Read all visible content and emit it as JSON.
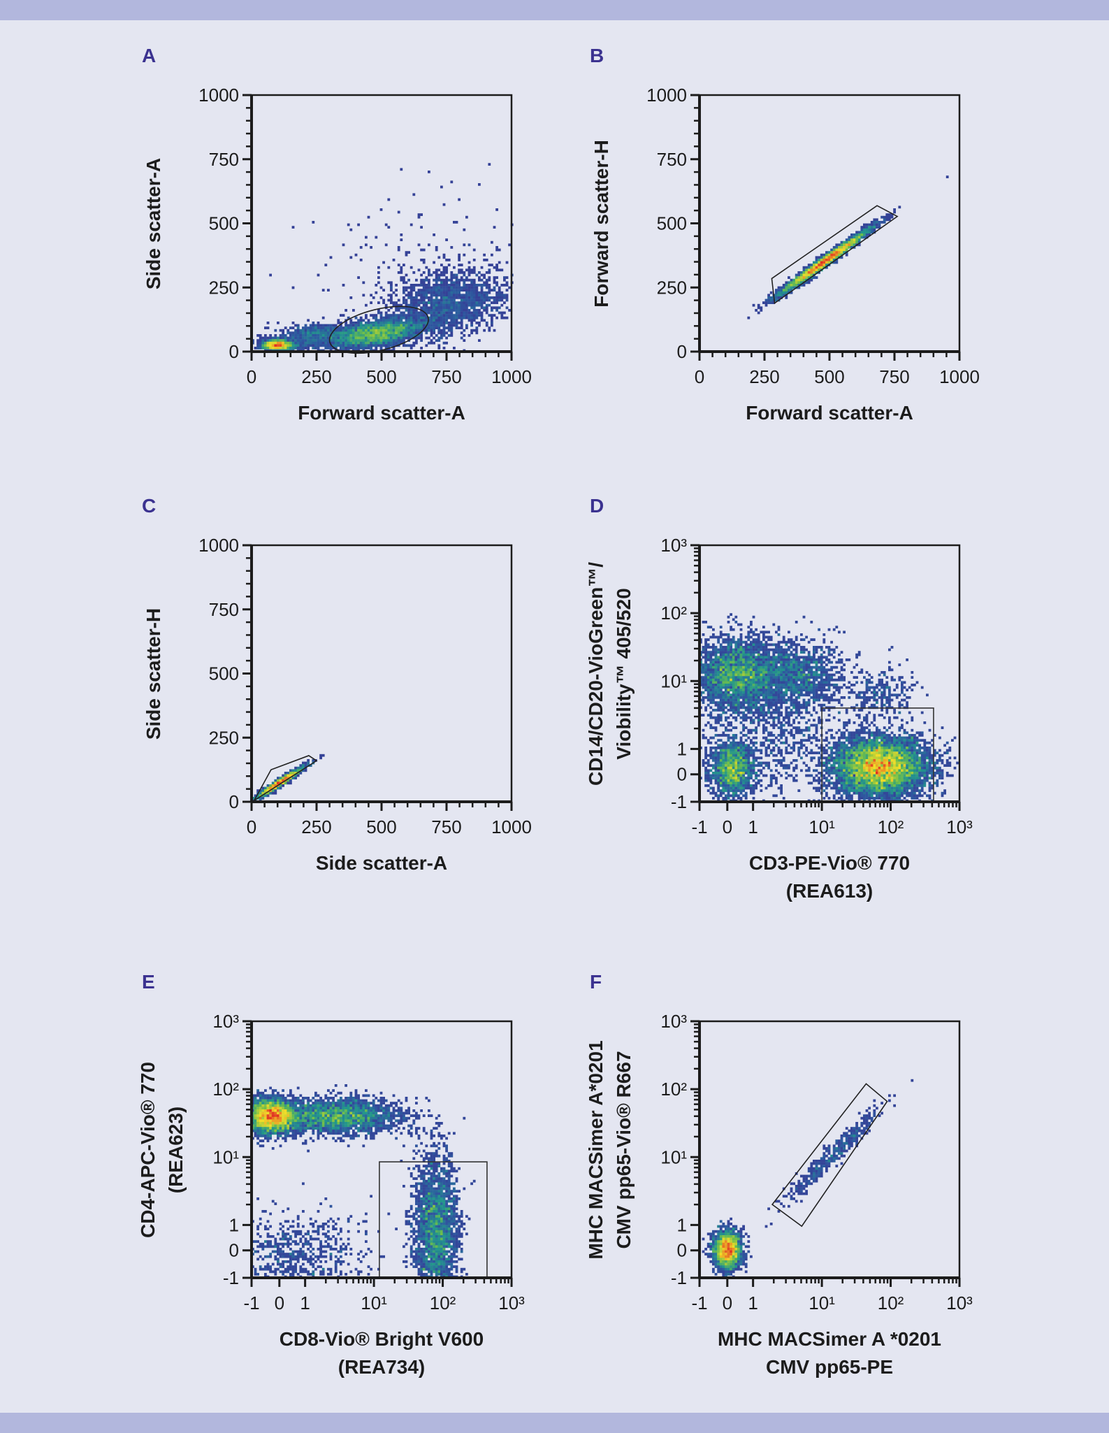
{
  "colors": {
    "background": "#e4e6f1",
    "band": "#b2b7dd",
    "panel_letter": "#3b3290",
    "density_low": "#3b2f8f",
    "density_high": "#e03020"
  },
  "chart_data": [
    {
      "panel": "A",
      "type": "scatter",
      "subtype": "density-dot-plot",
      "xlabel": "Forward scatter-A",
      "ylabel": "Side scatter-A",
      "xscale": "linear",
      "yscale": "linear",
      "xlim": [
        0,
        1000
      ],
      "ylim": [
        0,
        1000
      ],
      "xticks": [
        0,
        250,
        500,
        750,
        1000
      ],
      "xtick_labels": [
        "0",
        "250",
        "500",
        "750",
        "1000"
      ],
      "yticks": [
        0,
        250,
        500,
        750,
        1000
      ],
      "ytick_labels": [
        "0",
        "250",
        "500",
        "750",
        "1000"
      ],
      "gate": {
        "shape": "ellipse",
        "center": [
          490,
          85
        ],
        "radii": [
          195,
          80
        ],
        "angle_deg": 14
      },
      "populations": [
        {
          "x": 480,
          "y": 70,
          "sx": 85,
          "sy": 28,
          "rho": 0.4,
          "n": 3200
        },
        {
          "x": 100,
          "y": 25,
          "sx": 30,
          "sy": 10,
          "rho": 0,
          "n": 1500
        },
        {
          "x": 250,
          "y": 60,
          "sx": 80,
          "sy": 28,
          "rho": 0.2,
          "n": 800
        },
        {
          "x": 760,
          "y": 190,
          "sx": 110,
          "sy": 65,
          "rho": 0.2,
          "n": 1700
        },
        {
          "x": 650,
          "y": 330,
          "sx": 230,
          "sy": 170,
          "rho": 0.3,
          "n": 160
        }
      ]
    },
    {
      "panel": "B",
      "type": "scatter",
      "subtype": "density-dot-plot",
      "xlabel": "Forward scatter-A",
      "ylabel": "Forward scatter-H",
      "xscale": "linear",
      "yscale": "linear",
      "xlim": [
        0,
        1000
      ],
      "ylim": [
        0,
        1000
      ],
      "xticks": [
        0,
        250,
        500,
        750,
        1000
      ],
      "xtick_labels": [
        "0",
        "250",
        "500",
        "750",
        "1000"
      ],
      "yticks": [
        0,
        250,
        500,
        750,
        1000
      ],
      "ytick_labels": [
        "0",
        "250",
        "500",
        "750",
        "1000"
      ],
      "gate": {
        "shape": "polygon",
        "points": [
          [
            289,
            189
          ],
          [
            278,
            285
          ],
          [
            683,
            569
          ],
          [
            761,
            527
          ]
        ]
      },
      "populations": [
        {
          "x": 480,
          "y": 350,
          "sx": 85,
          "sy": 62,
          "rho": 0.985,
          "n": 4000
        }
      ]
    },
    {
      "panel": "C",
      "type": "scatter",
      "subtype": "density-dot-plot",
      "xlabel": "Side scatter-A",
      "ylabel": "Side scatter-H",
      "xscale": "linear",
      "yscale": "linear",
      "xlim": [
        0,
        1000
      ],
      "ylim": [
        0,
        1000
      ],
      "xticks": [
        0,
        250,
        500,
        750,
        1000
      ],
      "xtick_labels": [
        "0",
        "250",
        "500",
        "750",
        "1000"
      ],
      "yticks": [
        0,
        250,
        500,
        750,
        1000
      ],
      "ytick_labels": [
        "0",
        "250",
        "500",
        "750",
        "1000"
      ],
      "gate": {
        "shape": "polygon",
        "points": [
          [
            10,
            5
          ],
          [
            75,
            125
          ],
          [
            220,
            180
          ],
          [
            250,
            160
          ]
        ]
      },
      "populations": [
        {
          "x": 110,
          "y": 75,
          "sx": 45,
          "sy": 30,
          "rho": 0.97,
          "n": 1800
        }
      ]
    },
    {
      "panel": "D",
      "type": "scatter",
      "subtype": "density-dot-plot",
      "xlabel": [
        "CD3-PE-Vio® 770",
        "(REA613)"
      ],
      "ylabel": [
        "CD14/CD20-VioGreen™/",
        "Viobility™ 405/520"
      ],
      "xscale": "biexponential",
      "yscale": "biexponential",
      "xlim": [
        -1,
        1000
      ],
      "ylim": [
        -1,
        1000
      ],
      "xticks": [
        -1,
        0,
        1,
        10,
        100,
        1000
      ],
      "xtick_labels": [
        "-1",
        "0",
        "1",
        "10¹",
        "10²",
        "10³"
      ],
      "yticks": [
        -1,
        0,
        1,
        10,
        100,
        1000
      ],
      "ytick_labels": [
        "-1",
        "0",
        "1",
        "10¹",
        "10²",
        "10³"
      ],
      "gate": {
        "shape": "rectangle",
        "x": [
          10,
          420
        ],
        "y": [
          -1,
          4
        ]
      },
      "populations": [
        {
          "x": 70,
          "y": 0.3,
          "sx_decades": 0.35,
          "sy_decades": 0.22,
          "rho": 0,
          "n": 6500
        },
        {
          "x": 0.2,
          "y": 0.2,
          "sx_decades": 0.16,
          "sy_decades": 0.2,
          "rho": 0,
          "n": 1600
        },
        {
          "x": 0.3,
          "y": 12,
          "sx_decades": 0.3,
          "sy_decades": 0.28,
          "rho": 0,
          "n": 2600
        },
        {
          "x": 3.5,
          "y": 13,
          "sx_decades": 0.4,
          "sy_decades": 0.25,
          "rho": 0,
          "n": 1400
        },
        {
          "x": 2,
          "y": 2,
          "sx_decades": 0.5,
          "sy_decades": 0.5,
          "rho": 0,
          "n": 900
        },
        {
          "x": 70,
          "y": 6,
          "sx_decades": 0.25,
          "sy_decades": 0.2,
          "rho": 0,
          "n": 250
        }
      ]
    },
    {
      "panel": "E",
      "type": "scatter",
      "subtype": "density-dot-plot",
      "xlabel": [
        "CD8-Vio® Bright V600",
        "(REA734)"
      ],
      "ylabel": [
        "CD4-APC-Vio® 770",
        "(REA623)"
      ],
      "xscale": "biexponential",
      "yscale": "biexponential",
      "xlim": [
        -1,
        1000
      ],
      "ylim": [
        -1,
        1000
      ],
      "xticks": [
        -1,
        0,
        1,
        10,
        100,
        1000
      ],
      "xtick_labels": [
        "-1",
        "0",
        "1",
        "10¹",
        "10²",
        "10³"
      ],
      "yticks": [
        -1,
        0,
        1,
        10,
        100,
        1000
      ],
      "ytick_labels": [
        "-1",
        "0",
        "1",
        "10¹",
        "10²",
        "10³"
      ],
      "gate": {
        "shape": "rectangle",
        "x": [
          12,
          440
        ],
        "y": [
          -1,
          8.5
        ]
      },
      "populations": [
        {
          "x": -0.3,
          "y": 40,
          "sx_decades": 0.2,
          "sy_decades": 0.13,
          "rho": 0,
          "n": 3200
        },
        {
          "x": 3,
          "y": 40,
          "sx_decades": 0.45,
          "sy_decades": 0.13,
          "rho": 0,
          "n": 2400
        },
        {
          "x": 80,
          "y": 0.8,
          "sx_decades": 0.16,
          "sy_decades": 0.55,
          "rho": 0,
          "n": 2600
        },
        {
          "x": 0.5,
          "y": -0.2,
          "sx_decades": 0.55,
          "sy_decades": 0.3,
          "rho": 0,
          "n": 700
        }
      ]
    },
    {
      "panel": "F",
      "type": "scatter",
      "subtype": "density-dot-plot",
      "xlabel": [
        "MHC MACSimer A *0201",
        "CMV pp65-PE"
      ],
      "ylabel": [
        "MHC MACSimer A*0201",
        "CMV pp65-Vio® R667"
      ],
      "xscale": "biexponential",
      "yscale": "biexponential",
      "xlim": [
        -1,
        1000
      ],
      "ylim": [
        -1,
        1000
      ],
      "xticks": [
        -1,
        0,
        1,
        10,
        100,
        1000
      ],
      "xtick_labels": [
        "-1",
        "0",
        "1",
        "10¹",
        "10²",
        "10³"
      ],
      "yticks": [
        -1,
        0,
        1,
        10,
        100,
        1000
      ],
      "ytick_labels": [
        "-1",
        "0",
        "1",
        "10¹",
        "10²",
        "10³"
      ],
      "gate": {
        "shape": "polygon",
        "points": [
          [
            1.9,
            2.0
          ],
          [
            5.1,
            0.95
          ],
          [
            89,
            66
          ],
          [
            44,
            120
          ]
        ]
      },
      "populations": [
        {
          "x": 0,
          "y": 0,
          "sx_decades": 0.1,
          "sy_decades": 0.14,
          "rho": 0,
          "n": 2600
        },
        {
          "x": 15,
          "y": 11,
          "sx_decades": 0.35,
          "sy_decades": 0.35,
          "rho": 0.97,
          "n": 420
        }
      ]
    }
  ]
}
